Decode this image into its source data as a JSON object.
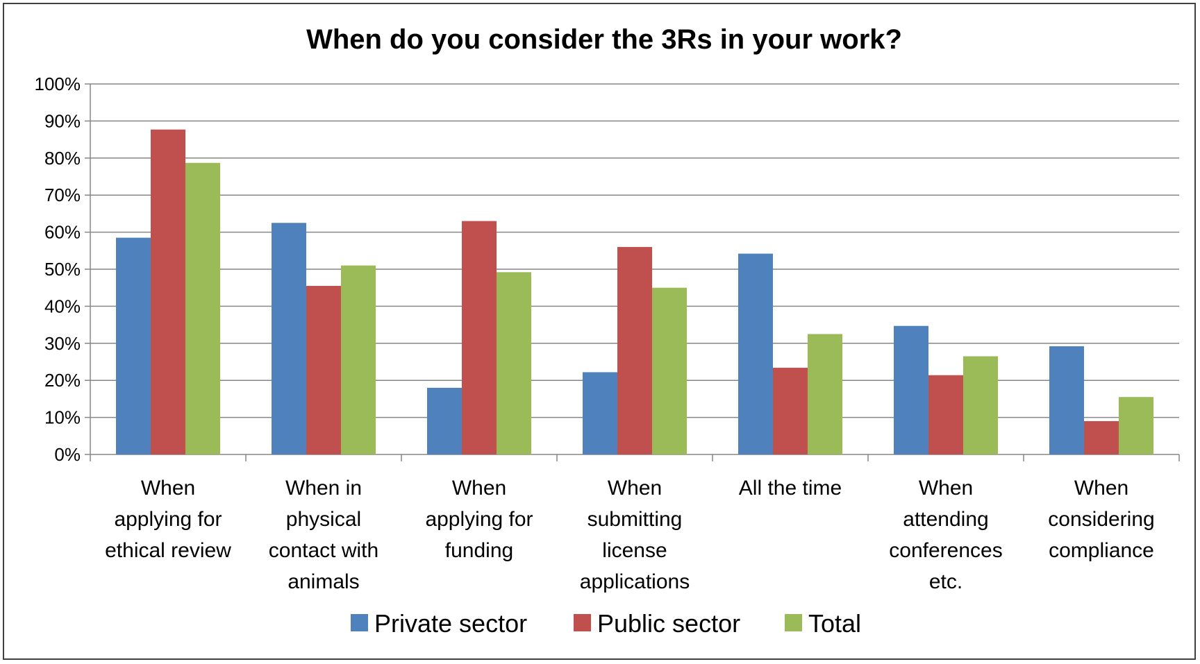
{
  "chart_data": {
    "type": "bar",
    "title": "When do you consider the 3Rs in your work?",
    "categories": [
      [
        "When",
        "applying for",
        "ethical review"
      ],
      [
        "When in",
        "physical",
        "contact with",
        "animals"
      ],
      [
        "When",
        "applying for",
        "funding"
      ],
      [
        "When",
        "submitting",
        "license",
        "applications"
      ],
      [
        "All the time"
      ],
      [
        "When",
        "attending",
        "conferences",
        "etc."
      ],
      [
        "When",
        "considering",
        "compliance"
      ]
    ],
    "series": [
      {
        "name": "Private sector",
        "color": "#4F81BD",
        "values": [
          58.5,
          62.5,
          18,
          22.2,
          54.2,
          34.7,
          29.2
        ]
      },
      {
        "name": "Public sector",
        "color": "#C0504D",
        "values": [
          87.7,
          45.5,
          63,
          56,
          23.4,
          21.4,
          9
        ]
      },
      {
        "name": "Total",
        "color": "#9BBB59",
        "values": [
          78.7,
          51,
          49.2,
          45,
          32.5,
          26.5,
          15.5
        ]
      }
    ],
    "yticks": [
      "0%",
      "10%",
      "20%",
      "30%",
      "40%",
      "50%",
      "60%",
      "70%",
      "80%",
      "90%",
      "100%"
    ],
    "ylim": [
      0,
      100
    ],
    "grid": true,
    "legend_position": "bottom"
  }
}
